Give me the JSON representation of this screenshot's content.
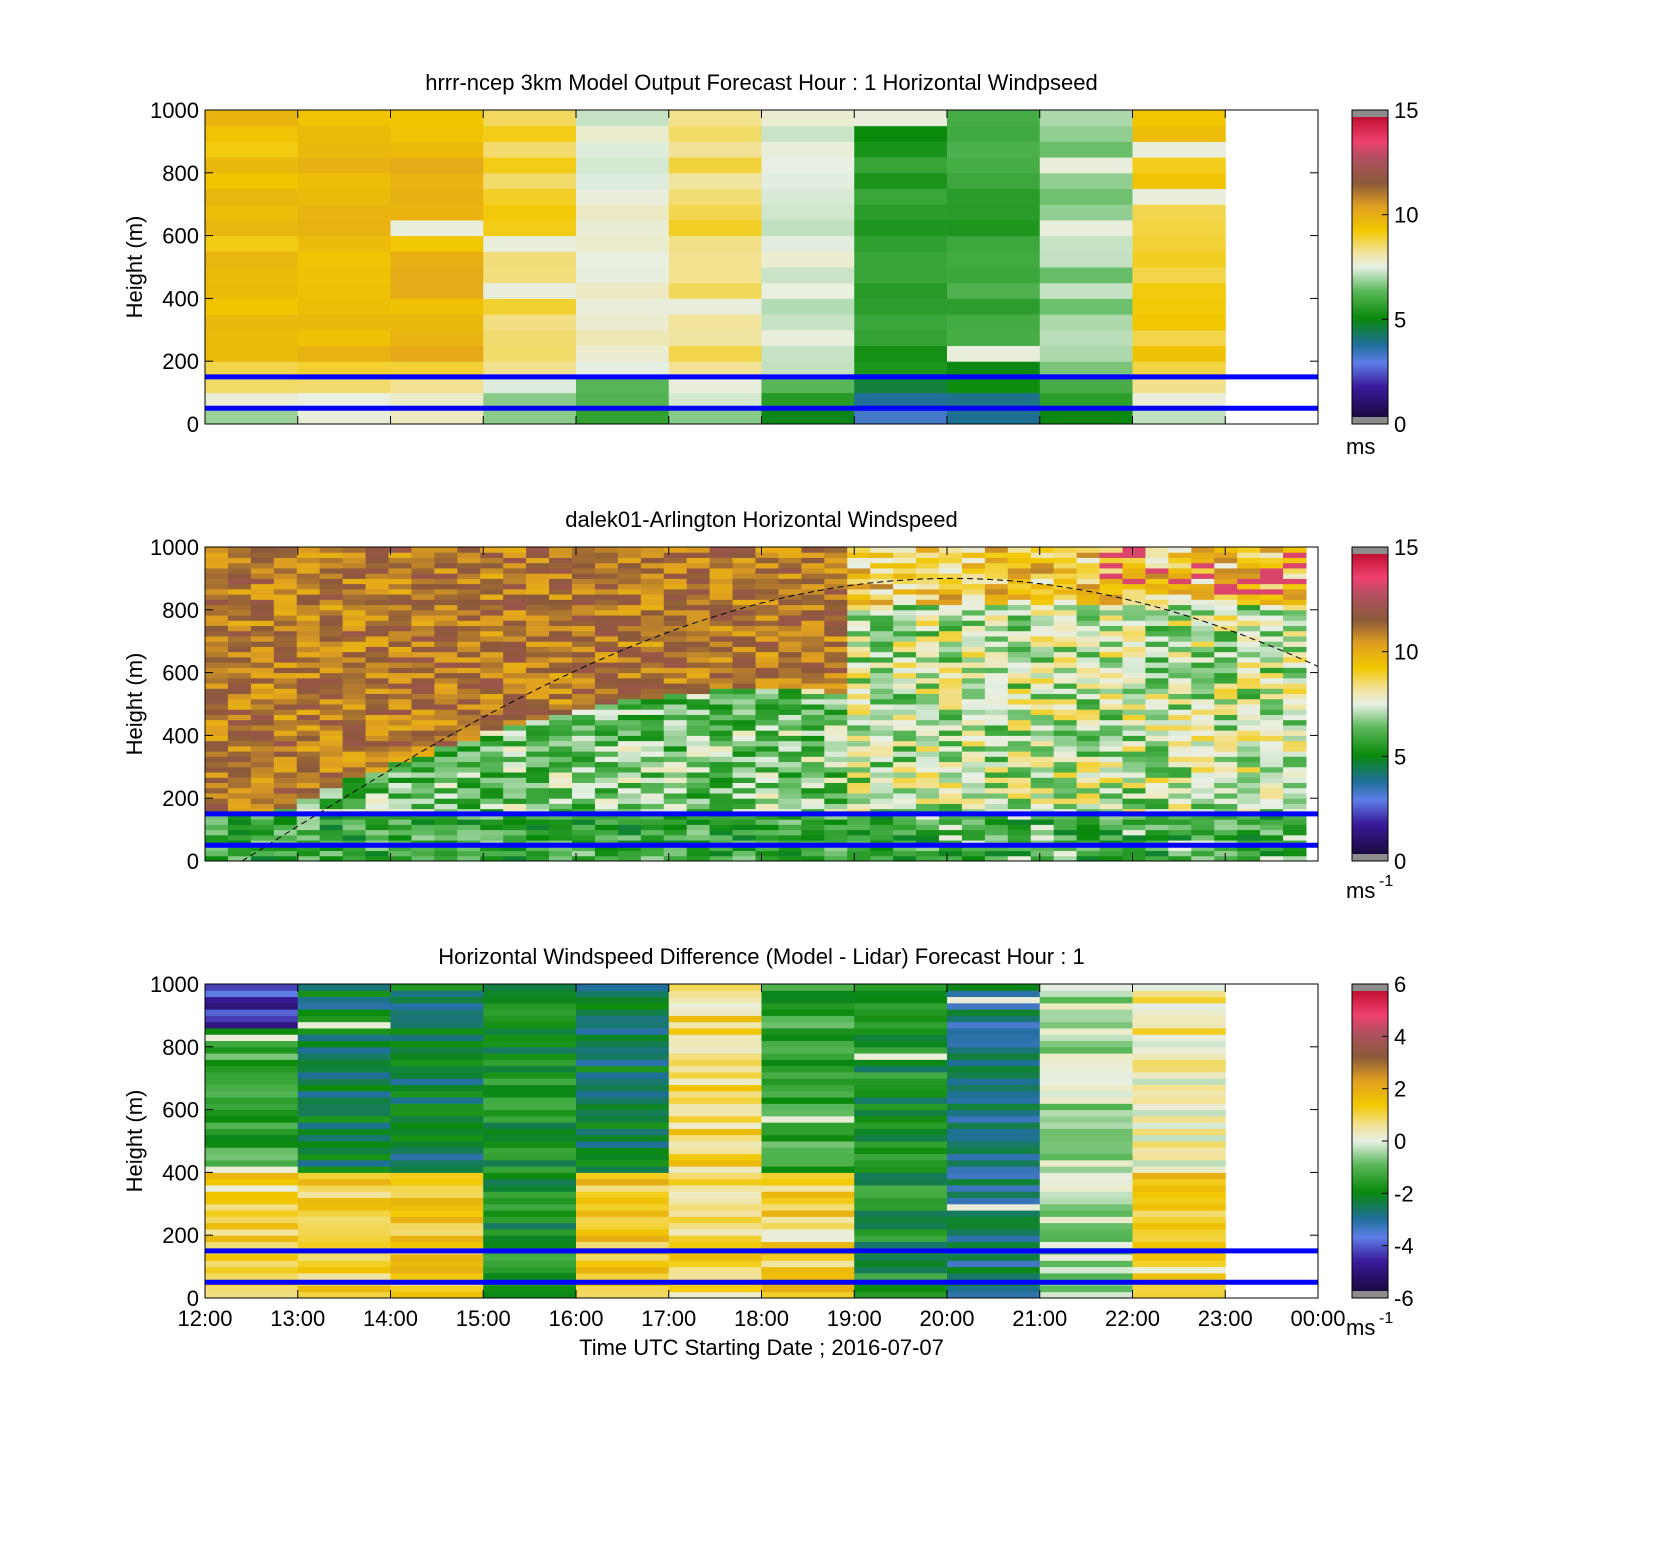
{
  "chart_data": [
    {
      "type": "heatmap",
      "title": "hrrr-ncep 3km Model Output   Forecast Hour : 1 Horizontal Windpseed",
      "ylabel": "Height (m)",
      "ylim": [
        0,
        1000
      ],
      "yticks": [
        "0",
        "200",
        "400",
        "600",
        "800",
        "1000"
      ],
      "x_categories": [
        "12:00",
        "13:00",
        "14:00",
        "15:00",
        "16:00",
        "17:00",
        "18:00",
        "19:00",
        "20:00",
        "21:00",
        "22:00",
        "23:00",
        "00:00"
      ],
      "colorbar": {
        "range": [
          0,
          15
        ],
        "ticks": [
          "0",
          "5",
          "10",
          "15"
        ],
        "unit_label": "ms"
      },
      "reference_lines": [
        150,
        50
      ],
      "reference_line_color": "#0000ff",
      "hourly_mean_speed": [
        9.5,
        9.6,
        9.8,
        8.8,
        7.6,
        8.6,
        7.3,
        5.4,
        5.7,
        6.8,
        9.2,
        null
      ]
    },
    {
      "type": "heatmap",
      "title": "dalek01-Arlington  Horizontal Windspeed",
      "ylabel": "Height (m)",
      "ylim": [
        0,
        1000
      ],
      "yticks": [
        "0",
        "200",
        "400",
        "600",
        "800",
        "1000"
      ],
      "colorbar": {
        "range": [
          0,
          15
        ],
        "ticks": [
          "0",
          "5",
          "10",
          "15"
        ],
        "unit_label": "ms",
        "unit_exponent": "-1"
      },
      "reference_lines": [
        150,
        50
      ],
      "reference_line_color": "#0000ff",
      "boundary_layer_curve_heights": [
        0,
        250,
        480,
        700,
        850,
        900,
        880,
        780,
        600
      ],
      "boundary_layer_curve_times": [
        "12:30",
        "14:00",
        "15:30",
        "17:00",
        "18:30",
        "20:00",
        "21:00",
        "22:30",
        "24:00"
      ]
    },
    {
      "type": "heatmap",
      "title": "Horizontal Windspeed Difference (Model - Lidar) Forecast Hour : 1",
      "ylabel": "Height (m)",
      "xlabel": "Time UTC  Starting Date ; 2016-07-07",
      "ylim": [
        0,
        1000
      ],
      "yticks": [
        "0",
        "200",
        "400",
        "600",
        "800",
        "1000"
      ],
      "x_categories": [
        "12:00",
        "13:00",
        "14:00",
        "15:00",
        "16:00",
        "17:00",
        "18:00",
        "19:00",
        "20:00",
        "21:00",
        "22:00",
        "23:00",
        "00:00"
      ],
      "colorbar": {
        "range": [
          -6,
          6
        ],
        "ticks": [
          "-6",
          "-4",
          "-2",
          "0",
          "2",
          "4",
          "6"
        ],
        "unit_label": "ms",
        "unit_exponent": "-1"
      },
      "reference_lines": [
        150,
        50
      ],
      "reference_line_color": "#0000ff"
    }
  ]
}
